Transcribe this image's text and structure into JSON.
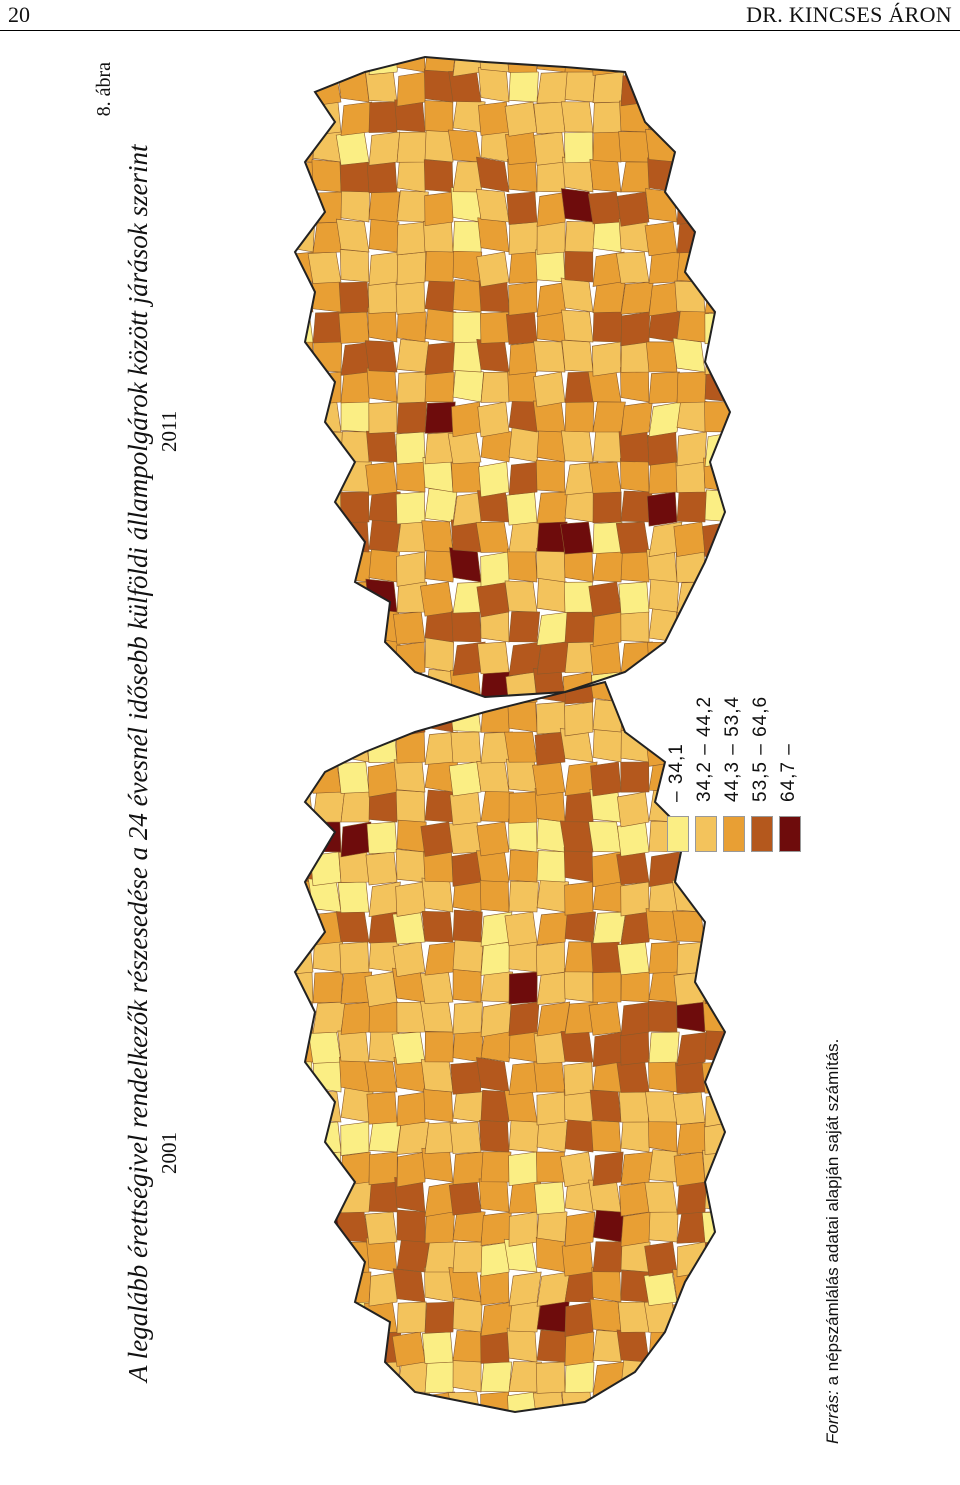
{
  "header": {
    "page_number": "20",
    "running_head": "DR. KINCSES ÁRON"
  },
  "figure": {
    "label": "8. ábra",
    "title": "A legalább érettségivel rendelkezők részesedése a 24 évesnél idősebb külföldi állampolgárok között járások szerint",
    "maps": [
      {
        "year": "2001"
      },
      {
        "year": "2011"
      }
    ],
    "legend": [
      {
        "range": "– 34,1",
        "color": "#fbee84"
      },
      {
        "range": "34,2 – 44,2",
        "color": "#f3c35c"
      },
      {
        "range": "44,3 – 53,4",
        "color": "#e89f34"
      },
      {
        "range": "53,5 – 64,6",
        "color": "#b4581d"
      },
      {
        "range": "64,7 –",
        "color": "#6e0c0c"
      }
    ],
    "source": {
      "label": "Forrás:",
      "text": " a népszámlálás adatai alapján saját számítás."
    }
  }
}
